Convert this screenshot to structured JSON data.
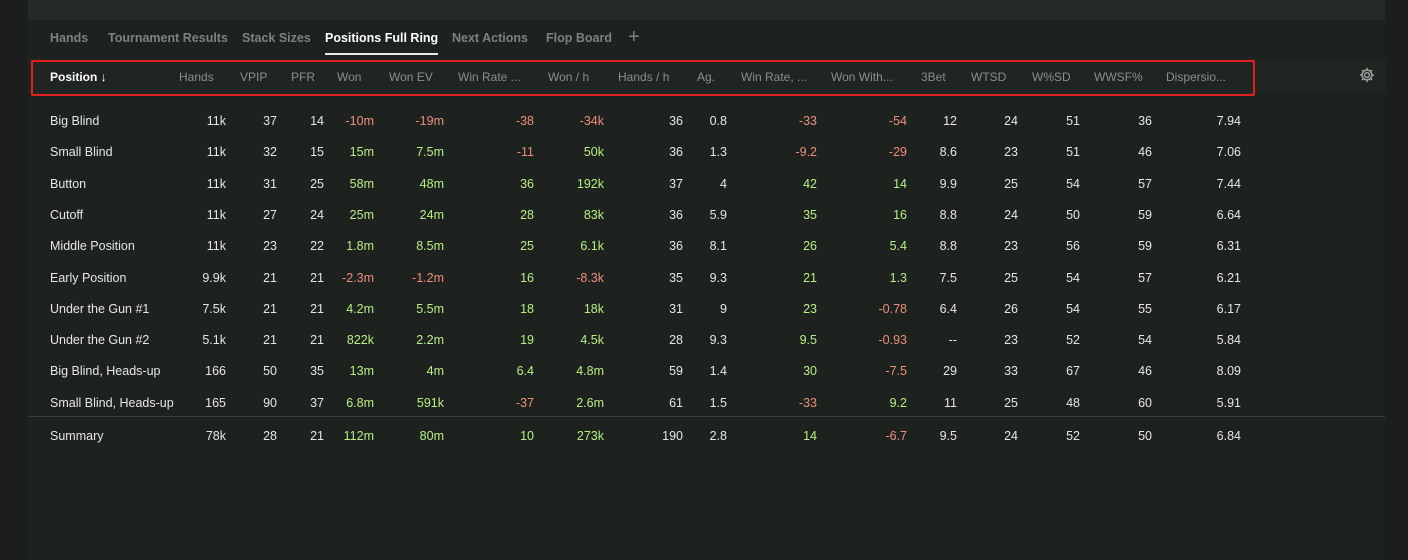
{
  "tabs": [
    {
      "label": "Hands",
      "active": false
    },
    {
      "label": "Tournament Results",
      "active": false
    },
    {
      "label": "Stack Sizes",
      "active": false
    },
    {
      "label": "Positions Full Ring",
      "active": true
    },
    {
      "label": "Next Actions",
      "active": false
    },
    {
      "label": "Flop Board",
      "active": false
    }
  ],
  "add_tab_label": "+",
  "columns": [
    "Position ↓",
    "Hands",
    "VPIP",
    "PFR",
    "Won",
    "Won EV",
    "Win Rate ...",
    "Won / h",
    "Hands / h",
    "Ag.",
    "Win Rate, ...",
    "Won With...",
    "3Bet",
    "WTSD",
    "W%SD",
    "WWSF%",
    "Dispersio..."
  ],
  "signed_columns": [
    4,
    5,
    6,
    7,
    10,
    11
  ],
  "rows": [
    [
      "Big Blind",
      "11k",
      "37",
      "14",
      "-10m",
      "-19m",
      "-38",
      "-34k",
      "36",
      "0.8",
      "-33",
      "-54",
      "12",
      "24",
      "51",
      "36",
      "7.94"
    ],
    [
      "Small Blind",
      "11k",
      "32",
      "15",
      "15m",
      "7.5m",
      "-11",
      "50k",
      "36",
      "1.3",
      "-9.2",
      "-29",
      "8.6",
      "23",
      "51",
      "46",
      "7.06"
    ],
    [
      "Button",
      "11k",
      "31",
      "25",
      "58m",
      "48m",
      "36",
      "192k",
      "37",
      "4",
      "42",
      "14",
      "9.9",
      "25",
      "54",
      "57",
      "7.44"
    ],
    [
      "Cutoff",
      "11k",
      "27",
      "24",
      "25m",
      "24m",
      "28",
      "83k",
      "36",
      "5.9",
      "35",
      "16",
      "8.8",
      "24",
      "50",
      "59",
      "6.64"
    ],
    [
      "Middle Position",
      "11k",
      "23",
      "22",
      "1.8m",
      "8.5m",
      "25",
      "6.1k",
      "36",
      "8.1",
      "26",
      "5.4",
      "8.8",
      "23",
      "56",
      "59",
      "6.31"
    ],
    [
      "Early Position",
      "9.9k",
      "21",
      "21",
      "-2.3m",
      "-1.2m",
      "16",
      "-8.3k",
      "35",
      "9.3",
      "21",
      "1.3",
      "7.5",
      "25",
      "54",
      "57",
      "6.21"
    ],
    [
      "Under the Gun #1",
      "7.5k",
      "21",
      "21",
      "4.2m",
      "5.5m",
      "18",
      "18k",
      "31",
      "9",
      "23",
      "-0.78",
      "6.4",
      "26",
      "54",
      "55",
      "6.17"
    ],
    [
      "Under the Gun #2",
      "5.1k",
      "21",
      "21",
      "822k",
      "2.2m",
      "19",
      "4.5k",
      "28",
      "9.3",
      "9.5",
      "-0.93",
      "--",
      "23",
      "52",
      "54",
      "5.84"
    ],
    [
      "Big Blind, Heads-up",
      "166",
      "50",
      "35",
      "13m",
      "4m",
      "6.4",
      "4.8m",
      "59",
      "1.4",
      "30",
      "-7.5",
      "29",
      "33",
      "67",
      "46",
      "8.09"
    ],
    [
      "Small Blind, Heads-up",
      "165",
      "90",
      "37",
      "6.8m",
      "591k",
      "-37",
      "2.6m",
      "61",
      "1.5",
      "-33",
      "9.2",
      "11",
      "25",
      "48",
      "60",
      "5.91"
    ]
  ],
  "summary": [
    "Summary",
    "78k",
    "28",
    "21",
    "112m",
    "80m",
    "10",
    "273k",
    "190",
    "2.8",
    "14",
    "-6.7",
    "9.5",
    "24",
    "52",
    "50",
    "6.84"
  ],
  "colors": {
    "positive": "#b9ee86",
    "negative": "#f08d7c",
    "text": "#e6e6e6",
    "header": "#8a8f8a",
    "highlight": "#e02020"
  },
  "icons": {
    "settings": "gear-icon",
    "add_tab": "plus-icon"
  }
}
